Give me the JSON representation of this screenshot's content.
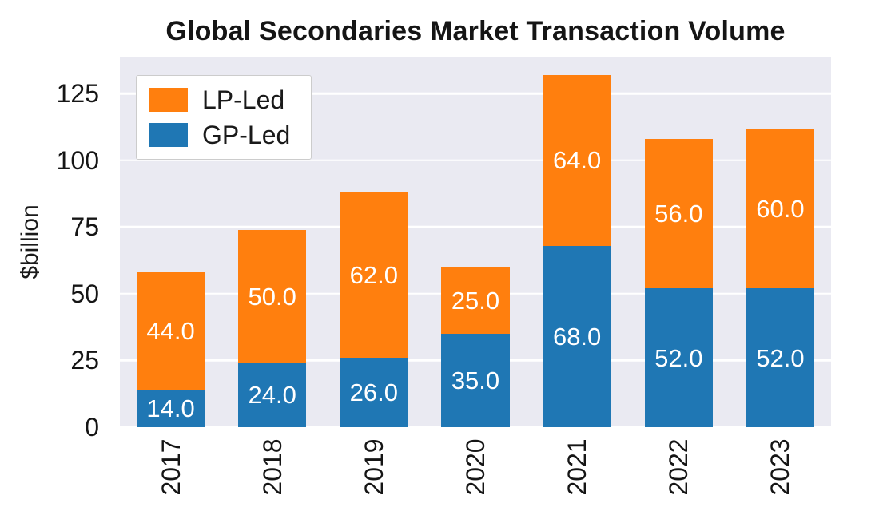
{
  "chart_data": {
    "type": "bar",
    "stacked": true,
    "title": "Global Secondaries Market Transaction Volume",
    "ylabel": "$billion",
    "xlabel": "",
    "categories": [
      "2017",
      "2018",
      "2019",
      "2020",
      "2021",
      "2022",
      "2023"
    ],
    "series": [
      {
        "name": "GP-Led",
        "color": "#1f77b4",
        "values": [
          14.0,
          24.0,
          26.0,
          35.0,
          68.0,
          52.0,
          52.0
        ]
      },
      {
        "name": "LP-Led",
        "color": "#ff7f0e",
        "values": [
          44.0,
          50.0,
          62.0,
          25.0,
          64.0,
          56.0,
          60.0
        ]
      }
    ],
    "totals": [
      58.0,
      74.0,
      88.0,
      60.0,
      132.0,
      108.0,
      112.0
    ],
    "legend": {
      "position": "upper-left",
      "entries": [
        "LP-Led",
        "GP-Led"
      ]
    },
    "yticks": [
      0,
      25,
      50,
      75,
      100,
      125
    ],
    "ylim": [
      0,
      138.6
    ],
    "grid": true,
    "plot_background": "#eaeaf2",
    "gridline_color": "#ffffff",
    "value_label_color": "#ffffff"
  }
}
